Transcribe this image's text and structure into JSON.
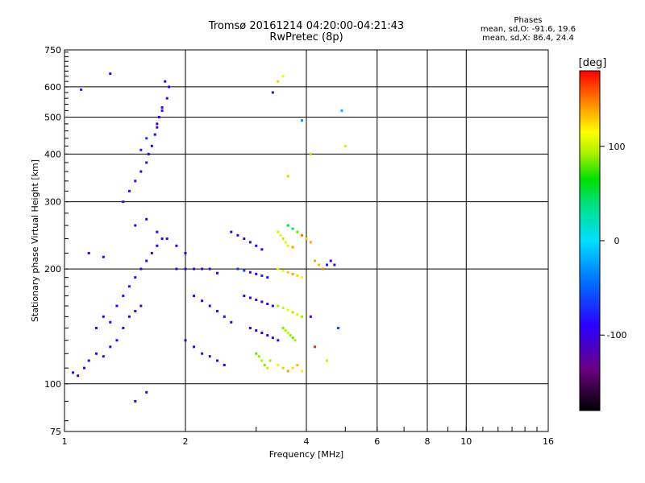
{
  "header": {
    "title_line1": "Tromsø 20161214 04:20:00-04:21:43",
    "title_line2": "RwPretec (8p)"
  },
  "phases_box": {
    "heading": "Phases",
    "line_o": "mean, sd,O: -91.6, 19.6",
    "line_x": "mean, sd,X:  86.4, 24.4"
  },
  "colorbar": {
    "unit_label": "[deg]",
    "tick_labels": [
      "100",
      "0",
      "-100"
    ],
    "tick_values": [
      100,
      0,
      -100
    ],
    "range": [
      -180,
      180
    ]
  },
  "chart_data": {
    "type": "scatter",
    "xlabel": "Frequency [MHz]",
    "ylabel": "Stationary phase Virtual Height [km]",
    "x_scale": "log",
    "y_scale": "log",
    "xlim": [
      1,
      16
    ],
    "ylim": [
      75,
      750
    ],
    "x_ticks": [
      1,
      2,
      4,
      6,
      8,
      10,
      16
    ],
    "x_tick_labels": [
      "1",
      "2",
      "4",
      "6",
      "8",
      "10",
      "16"
    ],
    "y_ticks": [
      75,
      100,
      200,
      300,
      400,
      500,
      600,
      750
    ],
    "y_tick_labels": [
      "75",
      "100",
      "200",
      "300",
      "400",
      "500",
      "600",
      "750"
    ],
    "grid": true,
    "points": [
      [
        1.05,
        107,
        -95
      ],
      [
        1.08,
        105,
        -100
      ],
      [
        1.12,
        110,
        -90
      ],
      [
        1.15,
        115,
        -105
      ],
      [
        1.2,
        120,
        -95
      ],
      [
        1.25,
        118,
        -110
      ],
      [
        1.3,
        125,
        -100
      ],
      [
        1.35,
        130,
        -90
      ],
      [
        1.4,
        140,
        -100
      ],
      [
        1.45,
        150,
        -95
      ],
      [
        1.5,
        155,
        -105
      ],
      [
        1.55,
        160,
        -100
      ],
      [
        1.2,
        140,
        -110
      ],
      [
        1.25,
        150,
        -95
      ],
      [
        1.3,
        145,
        -100
      ],
      [
        1.35,
        160,
        -90
      ],
      [
        1.4,
        170,
        -100
      ],
      [
        1.45,
        180,
        -85
      ],
      [
        1.5,
        190,
        -95
      ],
      [
        1.55,
        200,
        -100
      ],
      [
        1.6,
        210,
        -105
      ],
      [
        1.65,
        220,
        -95
      ],
      [
        1.7,
        230,
        -100
      ],
      [
        1.75,
        240,
        -90
      ],
      [
        1.4,
        300,
        -95
      ],
      [
        1.45,
        320,
        -100
      ],
      [
        1.5,
        340,
        -110
      ],
      [
        1.55,
        360,
        -95
      ],
      [
        1.6,
        380,
        -100
      ],
      [
        1.62,
        400,
        -105
      ],
      [
        1.65,
        420,
        -95
      ],
      [
        1.68,
        450,
        -90
      ],
      [
        1.7,
        480,
        -100
      ],
      [
        1.72,
        500,
        -95
      ],
      [
        1.75,
        520,
        -85
      ],
      [
        1.8,
        560,
        -100
      ],
      [
        1.82,
        600,
        -95
      ],
      [
        1.78,
        620,
        -90
      ],
      [
        1.6,
        440,
        -70
      ],
      [
        1.55,
        410,
        -80
      ],
      [
        1.7,
        470,
        -110
      ],
      [
        1.75,
        530,
        -100
      ],
      [
        1.5,
        260,
        -100
      ],
      [
        1.6,
        270,
        -95
      ],
      [
        1.7,
        250,
        -90
      ],
      [
        1.8,
        240,
        -105
      ],
      [
        1.9,
        230,
        -100
      ],
      [
        2.0,
        220,
        -95
      ],
      [
        1.9,
        200,
        -100
      ],
      [
        2.0,
        200,
        -95
      ],
      [
        2.1,
        200,
        -110
      ],
      [
        2.2,
        200,
        -105
      ],
      [
        2.3,
        200,
        -100
      ],
      [
        2.4,
        195,
        -90
      ],
      [
        2.1,
        170,
        -95
      ],
      [
        2.2,
        165,
        -100
      ],
      [
        2.3,
        160,
        -85
      ],
      [
        2.4,
        155,
        -95
      ],
      [
        2.5,
        150,
        -100
      ],
      [
        2.6,
        145,
        -105
      ],
      [
        2.0,
        130,
        -100
      ],
      [
        2.1,
        125,
        -95
      ],
      [
        2.2,
        120,
        -110
      ],
      [
        2.3,
        118,
        -100
      ],
      [
        2.4,
        115,
        -95
      ],
      [
        2.5,
        112,
        -90
      ],
      [
        2.6,
        250,
        -95
      ],
      [
        2.7,
        245,
        -100
      ],
      [
        2.8,
        240,
        -105
      ],
      [
        2.9,
        235,
        -100
      ],
      [
        3.0,
        230,
        -95
      ],
      [
        3.1,
        225,
        -90
      ],
      [
        2.7,
        200,
        -70
      ],
      [
        2.8,
        198,
        -60
      ],
      [
        2.9,
        196,
        -80
      ],
      [
        3.0,
        194,
        -90
      ],
      [
        3.1,
        192,
        -75
      ],
      [
        3.2,
        190,
        -85
      ],
      [
        2.8,
        170,
        -100
      ],
      [
        2.9,
        168,
        -95
      ],
      [
        3.0,
        166,
        -100
      ],
      [
        3.1,
        164,
        -110
      ],
      [
        3.2,
        162,
        -95
      ],
      [
        3.3,
        160,
        -90
      ],
      [
        2.9,
        140,
        -105
      ],
      [
        3.0,
        138,
        -100
      ],
      [
        3.1,
        136,
        -95
      ],
      [
        3.2,
        134,
        -90
      ],
      [
        3.3,
        132,
        -100
      ],
      [
        3.4,
        130,
        -95
      ],
      [
        3.0,
        120,
        80
      ],
      [
        3.05,
        118,
        90
      ],
      [
        3.1,
        115,
        95
      ],
      [
        3.15,
        112,
        85
      ],
      [
        3.2,
        110,
        100
      ],
      [
        3.25,
        115,
        92
      ],
      [
        3.4,
        250,
        100
      ],
      [
        3.45,
        245,
        110
      ],
      [
        3.5,
        240,
        95
      ],
      [
        3.55,
        235,
        105
      ],
      [
        3.6,
        230,
        120
      ],
      [
        3.7,
        228,
        140
      ],
      [
        3.4,
        200,
        110
      ],
      [
        3.5,
        198,
        120
      ],
      [
        3.6,
        196,
        130
      ],
      [
        3.7,
        194,
        140
      ],
      [
        3.8,
        192,
        125
      ],
      [
        3.9,
        190,
        115
      ],
      [
        3.4,
        160,
        90
      ],
      [
        3.5,
        158,
        100
      ],
      [
        3.6,
        156,
        110
      ],
      [
        3.7,
        154,
        95
      ],
      [
        3.8,
        152,
        105
      ],
      [
        3.9,
        150,
        90
      ],
      [
        3.5,
        140,
        85
      ],
      [
        3.55,
        138,
        95
      ],
      [
        3.6,
        136,
        100
      ],
      [
        3.65,
        134,
        90
      ],
      [
        3.7,
        132,
        80
      ],
      [
        3.75,
        130,
        95
      ],
      [
        3.4,
        112,
        120
      ],
      [
        3.5,
        110,
        130
      ],
      [
        3.6,
        108,
        140
      ],
      [
        3.7,
        110,
        125
      ],
      [
        3.8,
        112,
        135
      ],
      [
        3.9,
        108,
        120
      ],
      [
        3.6,
        260,
        60
      ],
      [
        3.7,
        255,
        40
      ],
      [
        3.8,
        250,
        80
      ],
      [
        3.9,
        245,
        150
      ],
      [
        4.0,
        240,
        130
      ],
      [
        4.1,
        235,
        140
      ],
      [
        4.2,
        210,
        140
      ],
      [
        4.3,
        205,
        135
      ],
      [
        4.4,
        200,
        150
      ],
      [
        4.5,
        205,
        -80
      ],
      [
        4.6,
        210,
        -90
      ],
      [
        4.7,
        205,
        -100
      ],
      [
        4.1,
        150,
        -120
      ],
      [
        4.2,
        125,
        170
      ],
      [
        4.5,
        115,
        100
      ],
      [
        4.8,
        140,
        -60
      ],
      [
        5.0,
        420,
        100
      ],
      [
        4.9,
        520,
        -20
      ],
      [
        3.4,
        620,
        130
      ],
      [
        3.5,
        640,
        110
      ],
      [
        3.3,
        580,
        -110
      ],
      [
        3.6,
        350,
        130
      ],
      [
        3.9,
        490,
        -30
      ],
      [
        4.1,
        400,
        90
      ],
      [
        1.1,
        590,
        -80
      ],
      [
        1.3,
        650,
        -100
      ],
      [
        1.15,
        220,
        -100
      ],
      [
        1.25,
        215,
        -90
      ],
      [
        1.5,
        90,
        -100
      ],
      [
        1.6,
        95,
        -110
      ]
    ]
  }
}
